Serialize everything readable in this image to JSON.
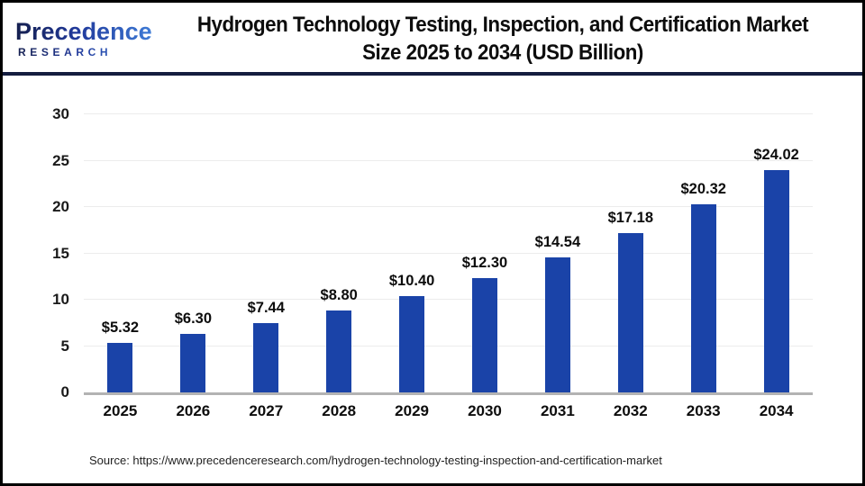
{
  "header": {
    "logo": {
      "brand": "Precedence",
      "sub": "RESEARCH"
    },
    "title_line1": "Hydrogen Technology Testing, Inspection, and Certification Market",
    "title_line2": "Size 2025 to 2034 (USD Billion)"
  },
  "chart_data": {
    "type": "bar",
    "title": "Hydrogen Technology Testing, Inspection, and Certification Market Size 2025 to 2034 (USD Billion)",
    "categories": [
      "2025",
      "2026",
      "2027",
      "2028",
      "2029",
      "2030",
      "2031",
      "2032",
      "2033",
      "2034"
    ],
    "values": [
      5.32,
      6.3,
      7.44,
      8.8,
      10.4,
      12.3,
      14.54,
      17.18,
      20.32,
      24.02
    ],
    "labels": [
      "$5.32",
      "$6.30",
      "$7.44",
      "$8.80",
      "$10.40",
      "$12.30",
      "$14.54",
      "$17.18",
      "$20.32",
      "$24.02"
    ],
    "xlabel": "",
    "ylabel": "",
    "ylim": [
      0,
      30
    ],
    "yticks": [
      0,
      5,
      10,
      15,
      20,
      25,
      30
    ],
    "grid": true,
    "legend": "none",
    "bar_color": "#1a43a8"
  },
  "footer": {
    "source": "Source: https://www.precedenceresearch.com/hydrogen-technology-testing-inspection-and-certification-market"
  },
  "colors": {
    "bar_blue": "#1a43a8",
    "divider_navy": "#141d3f",
    "logo_navy": "#151f4e",
    "logo_blue": "#3e7bd6",
    "grid_gray": "#ececec",
    "axis_gray": "#b3b3b3"
  }
}
